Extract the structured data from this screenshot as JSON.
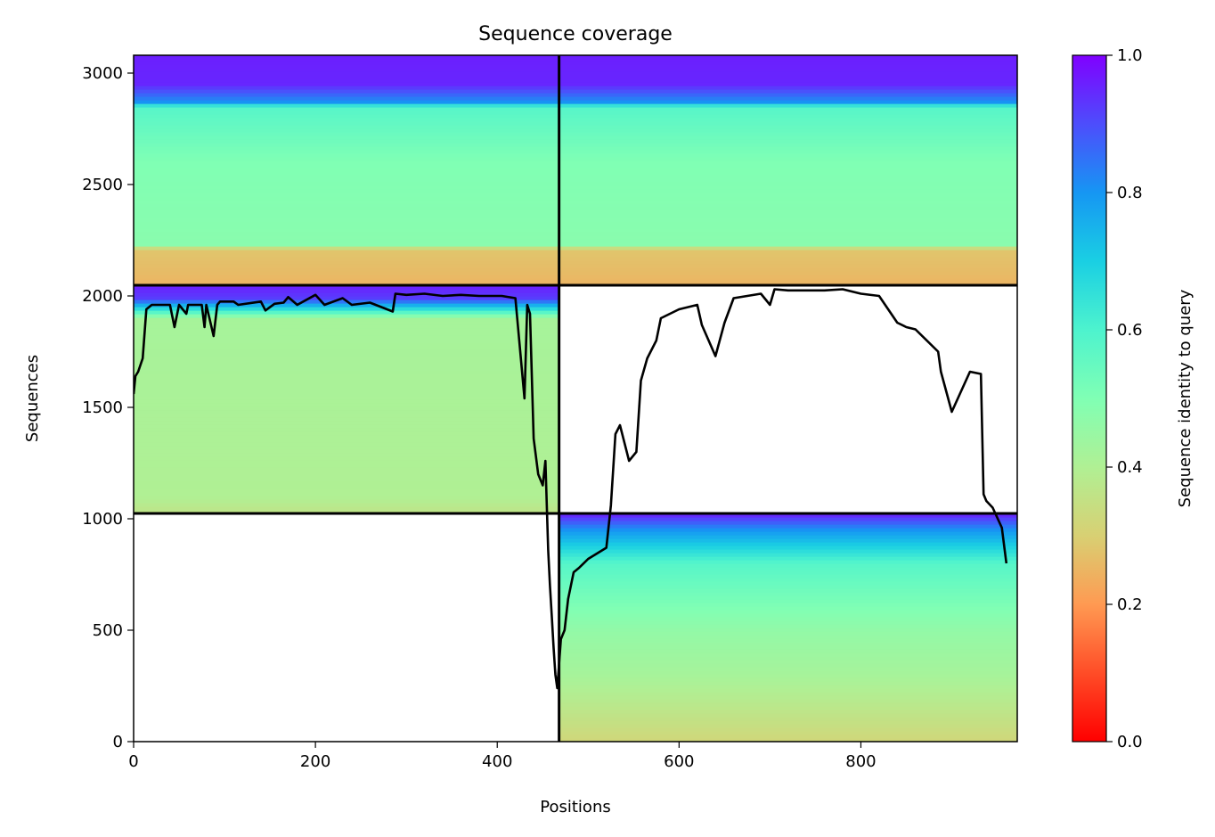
{
  "chart_data": {
    "type": "heatmap",
    "title": "Sequence coverage",
    "xlabel": "Positions",
    "ylabel": "Sequences",
    "xlim": [
      0,
      972
    ],
    "ylim": [
      0,
      3080
    ],
    "xticks": [
      {
        "value": 0,
        "label": "0"
      },
      {
        "value": 200,
        "label": "200"
      },
      {
        "value": 400,
        "label": "400"
      },
      {
        "value": 600,
        "label": "600"
      },
      {
        "value": 800,
        "label": "800"
      }
    ],
    "yticks": [
      {
        "value": 0,
        "label": "0"
      },
      {
        "value": 500,
        "label": "500"
      },
      {
        "value": 1000,
        "label": "1000"
      },
      {
        "value": 1500,
        "label": "1500"
      },
      {
        "value": 2000,
        "label": "2000"
      },
      {
        "value": 2500,
        "label": "2500"
      },
      {
        "value": 3000,
        "label": "3000"
      }
    ],
    "divider_x": 468,
    "divider_y": [
      1024,
      2048
    ],
    "colormap": "rainbow_r",
    "colorbar": {
      "label": "Sequence identity to query",
      "range": [
        0,
        1
      ],
      "ticks": [
        {
          "value": 0.0,
          "label": "0.0"
        },
        {
          "value": 0.2,
          "label": "0.2"
        },
        {
          "value": 0.4,
          "label": "0.4"
        },
        {
          "value": 0.6,
          "label": "0.6"
        },
        {
          "value": 0.8,
          "label": "0.8"
        },
        {
          "value": 1.0,
          "label": "1.0"
        }
      ]
    },
    "blocks": [
      {
        "name": "chain-A-block",
        "x_range": [
          0,
          468
        ],
        "y_range": [
          2048,
          3080
        ],
        "coverage_start": 0,
        "coverage_end": 468,
        "identity_profile": [
          [
            2048,
            0.25
          ],
          [
            2210,
            0.28
          ],
          [
            2230,
            0.48
          ],
          [
            2600,
            0.5
          ],
          [
            2850,
            0.58
          ],
          [
            2870,
            0.8
          ],
          [
            2950,
            0.95
          ],
          [
            3080,
            0.96
          ]
        ]
      },
      {
        "name": "chain-B-block-top",
        "x_range": [
          468,
          972
        ],
        "y_range": [
          2048,
          3080
        ],
        "coverage_start": 468,
        "coverage_end": 972,
        "identity_profile": [
          [
            2048,
            0.25
          ],
          [
            2210,
            0.28
          ],
          [
            2230,
            0.48
          ],
          [
            2600,
            0.5
          ],
          [
            2850,
            0.58
          ],
          [
            2870,
            0.8
          ],
          [
            2950,
            0.95
          ],
          [
            3080,
            0.96
          ]
        ]
      },
      {
        "name": "chain-A-self-block",
        "x_range": [
          0,
          468
        ],
        "y_range": [
          1024,
          2048
        ],
        "coverage_start": 0,
        "coverage_end": 468,
        "identity_profile": [
          [
            1024,
            0.36
          ],
          [
            1100,
            0.4
          ],
          [
            1900,
            0.42
          ],
          [
            1950,
            0.7
          ],
          [
            1990,
            0.92
          ],
          [
            2048,
            0.96
          ]
        ]
      },
      {
        "name": "chain-B-self-block",
        "x_range": [
          468,
          972
        ],
        "y_range": [
          0,
          1024
        ],
        "coverage_start": 468,
        "coverage_end": 972,
        "identity_profile": [
          [
            0,
            0.32
          ],
          [
            60,
            0.34
          ],
          [
            300,
            0.42
          ],
          [
            500,
            0.46
          ],
          [
            800,
            0.58
          ],
          [
            950,
            0.8
          ],
          [
            1024,
            0.96
          ]
        ]
      }
    ],
    "coverage_line": {
      "x": [
        0,
        2,
        5,
        10,
        14,
        20,
        40,
        45,
        50,
        58,
        60,
        75,
        78,
        80,
        88,
        92,
        95,
        110,
        115,
        140,
        145,
        155,
        165,
        170,
        180,
        200,
        210,
        230,
        240,
        260,
        285,
        288,
        300,
        320,
        340,
        360,
        380,
        405,
        420,
        430,
        433,
        436,
        440,
        445,
        450,
        453,
        456,
        458,
        460,
        462,
        464,
        466,
        470,
        474,
        478,
        484,
        490,
        500,
        520,
        525,
        530,
        535,
        545,
        553,
        558,
        565,
        575,
        580,
        600,
        620,
        625,
        640,
        650,
        660,
        690,
        700,
        705,
        720,
        760,
        780,
        800,
        820,
        840,
        850,
        860,
        885,
        888,
        900,
        920,
        932,
        935,
        938,
        945,
        955,
        960,
        965,
        972
      ],
      "y": [
        1560,
        1640,
        1660,
        1720,
        1940,
        1960,
        1960,
        1860,
        1960,
        1920,
        1960,
        1960,
        1860,
        1960,
        1820,
        1960,
        1975,
        1975,
        1960,
        1975,
        1935,
        1965,
        1970,
        1995,
        1960,
        2005,
        1960,
        1990,
        1960,
        1970,
        1930,
        2010,
        2005,
        2010,
        2000,
        2005,
        2000,
        2000,
        1990,
        1540,
        1960,
        1920,
        1360,
        1200,
        1150,
        1260,
        860,
        700,
        560,
        420,
        300,
        240,
        460,
        500,
        640,
        760,
        780,
        820,
        870,
        1060,
        1380,
        1420,
        1260,
        1300,
        1620,
        1720,
        1800,
        1900,
        1940,
        1960,
        1870,
        1730,
        1880,
        1990,
        2010,
        1960,
        2030,
        2025,
        2025,
        2030,
        2010,
        2000,
        1880,
        1860,
        1850,
        1750,
        1660,
        1480,
        1660,
        1650,
        1110,
        1080,
        1050,
        960,
        800
      ]
    }
  }
}
